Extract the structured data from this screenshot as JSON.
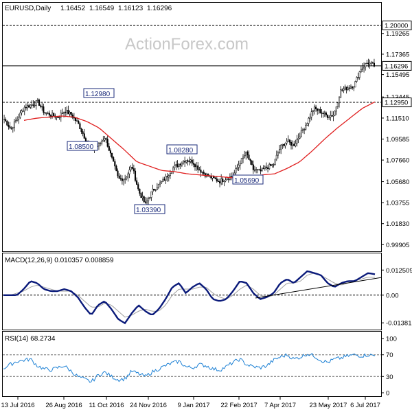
{
  "watermark": "ActionForex.com",
  "chart_data": [
    {
      "type": "candlestick",
      "title": "EURUSD,Daily",
      "ohlc_readout": [
        "1.16452",
        "1.16549",
        "1.16123",
        "1.16296"
      ],
      "ylim": [
        0.9942,
        1.212
      ],
      "y_ticks": [
        "1.19265",
        "1.17365",
        "1.15495",
        "1.13445",
        "1.11510",
        "1.09585",
        "1.07660",
        "1.05680",
        "1.03755",
        "1.01830",
        "0.99905"
      ],
      "highlighted_levels": [
        {
          "label": "1.20000",
          "value": 1.2,
          "style": "dashed"
        },
        {
          "label": "1.16296",
          "value": 1.16296,
          "style": "solid"
        },
        {
          "label": "1.12950",
          "value": 1.1295,
          "style": "dashed"
        }
      ],
      "annotations": [
        {
          "text": "1.12980",
          "value": 1.1298
        },
        {
          "text": "1.08500",
          "value": 1.085
        },
        {
          "text": "1.03390",
          "value": 1.0339
        },
        {
          "text": "1.08280",
          "value": 1.0828
        },
        {
          "text": "1.05690",
          "value": 1.0569
        }
      ],
      "x_ticks": [
        "13 Jul 2016",
        "26 Aug 2016",
        "11 Oct 2016",
        "24 Nov 2016",
        "9 Jan 2017",
        "22 Feb 2017",
        "7 Apr 2017",
        "23 May 2017",
        "6 Jul 2017"
      ],
      "close_anchors": [
        1.114,
        1.105,
        1.115,
        1.125,
        1.127,
        1.13,
        1.12,
        1.118,
        1.116,
        1.122,
        1.118,
        1.11,
        1.097,
        1.087,
        1.09,
        1.098,
        1.078,
        1.059,
        1.06,
        1.071,
        1.048,
        1.036,
        1.048,
        1.054,
        1.06,
        1.069,
        1.073,
        1.077,
        1.075,
        1.068,
        1.063,
        1.06,
        1.057,
        1.06,
        1.062,
        1.074,
        1.083,
        1.068,
        1.066,
        1.07,
        1.072,
        1.088,
        1.094,
        1.09,
        1.1,
        1.111,
        1.124,
        1.121,
        1.117,
        1.118,
        1.14,
        1.143,
        1.145,
        1.16,
        1.166,
        1.163
      ],
      "moving_average_anchors": [
        1.113,
        1.115,
        1.116,
        1.117,
        1.116,
        1.112,
        1.106,
        1.096,
        1.086,
        1.075,
        1.071,
        1.067,
        1.066,
        1.064,
        1.063,
        1.062,
        1.061,
        1.06,
        1.061,
        1.063,
        1.064,
        1.069,
        1.075,
        1.085,
        1.096,
        1.106,
        1.115,
        1.124,
        1.13
      ]
    },
    {
      "type": "line",
      "title": "MACD(12,26,9) 0.010357 0.008859",
      "ylim": [
        -0.0165,
        0.015
      ],
      "y_ticks": [
        "0.012509",
        "0.00",
        "-0.013813"
      ],
      "series": [
        {
          "values": [
            0.0,
            0.0,
            0.0,
            0.003,
            0.007,
            0.006,
            0.003,
            0.002,
            0.002,
            0.003,
            0.002,
            -0.001,
            -0.006,
            -0.01,
            -0.005,
            -0.003,
            -0.007,
            -0.012,
            -0.014,
            -0.009,
            -0.005,
            -0.008,
            -0.01,
            -0.007,
            -0.002,
            0.004,
            0.006,
            0.001,
            0.004,
            0.006,
            0.003,
            -0.002,
            -0.003,
            -0.002,
            0.002,
            0.007,
            0.006,
            0.001,
            -0.002,
            -0.001,
            0.001,
            0.006,
            0.008,
            0.006,
            0.009,
            0.012,
            0.011,
            0.01,
            0.006,
            0.004,
            0.006,
            0.007,
            0.007,
            0.009,
            0.011,
            0.0104
          ]
        },
        {
          "values": [
            0.0,
            0.0,
            0.001,
            0.002,
            0.004,
            0.005,
            0.004,
            0.003,
            0.002,
            0.002,
            0.002,
            0.0,
            -0.003,
            -0.006,
            -0.006,
            -0.004,
            -0.005,
            -0.008,
            -0.011,
            -0.01,
            -0.008,
            -0.007,
            -0.008,
            -0.008,
            -0.005,
            0.0,
            0.003,
            0.003,
            0.003,
            0.004,
            0.004,
            0.001,
            -0.001,
            -0.002,
            0.0,
            0.003,
            0.005,
            0.003,
            0.0,
            -0.001,
            0.0,
            0.003,
            0.006,
            0.006,
            0.007,
            0.01,
            0.011,
            0.01,
            0.008,
            0.006,
            0.005,
            0.006,
            0.007,
            0.008,
            0.009,
            0.0089
          ]
        }
      ]
    },
    {
      "type": "line",
      "title": "RSI(14) 68.2734",
      "ylim": [
        0,
        100
      ],
      "y_ticks": [
        "100",
        "70",
        "30",
        "0"
      ],
      "levels": [
        70,
        30
      ],
      "series": [
        {
          "values": [
            45,
            52,
            58,
            60,
            62,
            50,
            44,
            42,
            46,
            50,
            40,
            30,
            25,
            20,
            32,
            38,
            30,
            24,
            26,
            40,
            35,
            30,
            38,
            44,
            50,
            55,
            58,
            48,
            46,
            52,
            50,
            44,
            42,
            48,
            56,
            62,
            52,
            48,
            46,
            50,
            60,
            66,
            70,
            62,
            66,
            72,
            68,
            60,
            56,
            62,
            64,
            68,
            70,
            68,
            70,
            68.27
          ]
        }
      ]
    }
  ]
}
